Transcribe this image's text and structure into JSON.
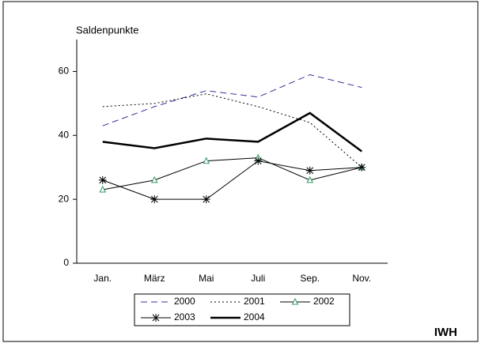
{
  "chart_data": {
    "type": "line",
    "y_axis_label": "Saldenpunkte",
    "source": "IWH",
    "categories": [
      "Jan.",
      "März",
      "Mai",
      "Juli",
      "Sep.",
      "Nov."
    ],
    "series": [
      {
        "name": "2000",
        "color": "#333399",
        "style": "dashed",
        "values": [
          43,
          49,
          54,
          52,
          59,
          55
        ]
      },
      {
        "name": "2001",
        "color": "#000000",
        "style": "dotted",
        "values": [
          49,
          50,
          53,
          49,
          44,
          30
        ]
      },
      {
        "name": "2002",
        "color": "#000000",
        "style": "solid",
        "marker": "triangle",
        "marker_color": "#339966",
        "values": [
          23,
          26,
          32,
          33,
          26,
          30
        ]
      },
      {
        "name": "2003",
        "color": "#000000",
        "style": "solid",
        "marker": "star",
        "values": [
          26,
          20,
          20,
          32,
          29,
          30
        ]
      },
      {
        "name": "2004",
        "color": "#000000",
        "style": "thick",
        "values": [
          38,
          36,
          39,
          38,
          47,
          35
        ]
      }
    ],
    "ylim": [
      0,
      70
    ],
    "yticks": [
      0,
      20,
      40,
      60
    ],
    "grid": false,
    "legend": "bottom"
  }
}
